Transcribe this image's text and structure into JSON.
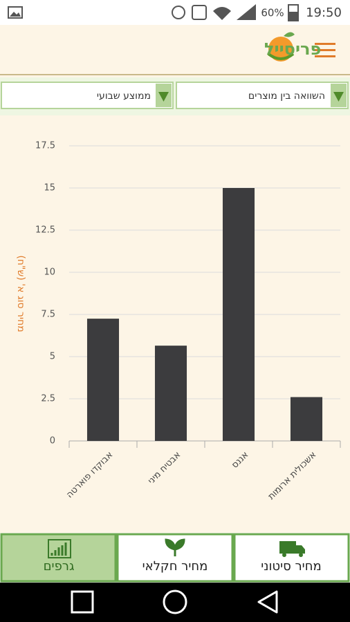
{
  "status_bar": {
    "battery": "60%",
    "time": "19:50"
  },
  "header": {
    "brand": "פריסייל"
  },
  "filters": {
    "comparison": "השוואה בין מוצרים",
    "period": "ממוצע שבועי"
  },
  "chart_data": {
    "type": "bar",
    "y_label": "מחיר סוג א' (ש\"ח)",
    "categories": [
      "אבוקדו פוארטה",
      "אבטיח מיני",
      "אננס",
      "אשכולית ארומות"
    ],
    "values": [
      7.25,
      5.65,
      15,
      2.6
    ],
    "color": "#3c3c3e",
    "ylim": [
      0,
      17.5
    ],
    "yticks": [
      0,
      2.5,
      5,
      7.5,
      10,
      12.5,
      15,
      17.5
    ],
    "grid": true
  },
  "tabs": [
    "מחיר סיטוני",
    "מחיר חקלאי",
    "גרפים"
  ]
}
